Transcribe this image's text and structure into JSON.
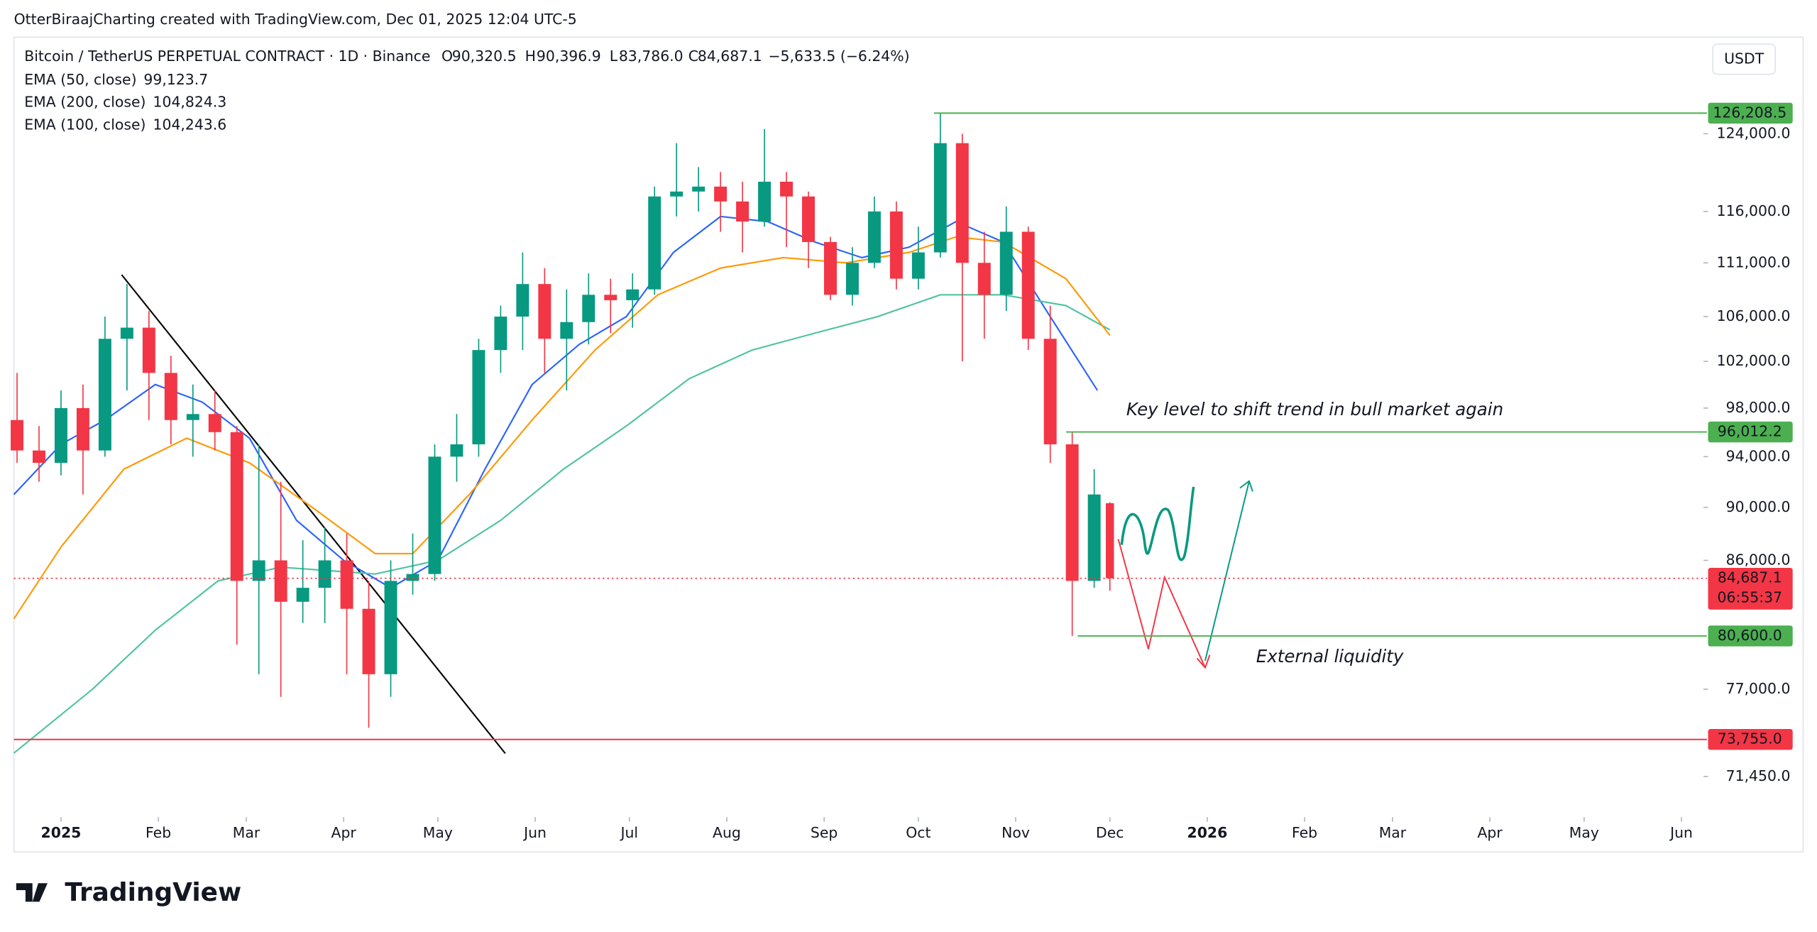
{
  "top_note": "OtterBiraajCharting created with TradingView.com, Dec 01, 2025 12:04 UTC-5",
  "currency": "USDT",
  "brand": "TradingView",
  "header": {
    "symbol": "Bitcoin / TetherUS PERPETUAL CONTRACT · 1D · Binance",
    "o_label": "O",
    "open": "90,320.5",
    "h_label": "H",
    "high": "90,396.9",
    "l_label": "L",
    "low": "83,786.0",
    "c_label": "C",
    "close": "84,687.1",
    "change": "−5,633.5 (−6.24%)"
  },
  "chart_data": {
    "type": "candlestick",
    "log_scale": true,
    "ylim": [
      69000,
      134300
    ],
    "yticks": [
      {
        "value": 71450,
        "label": "71,450.0"
      },
      {
        "value": 77000,
        "label": "77,000.0"
      },
      {
        "value": 86000,
        "label": "86,000.0"
      },
      {
        "value": 90000,
        "label": "90,000.0"
      },
      {
        "value": 94000,
        "label": "94,000.0"
      },
      {
        "value": 98000,
        "label": "98,000.0"
      },
      {
        "value": 102000,
        "label": "102,000.0"
      },
      {
        "value": 106000,
        "label": "106,000.0"
      },
      {
        "value": 111000,
        "label": "111,000.0"
      },
      {
        "value": 116000,
        "label": "116,000.0"
      },
      {
        "value": 124000,
        "label": "124,000.0"
      }
    ],
    "xlim": [
      -15,
      523
    ],
    "xticks": [
      {
        "value": 0,
        "label": "2025"
      },
      {
        "value": 31,
        "label": "Feb"
      },
      {
        "value": 59,
        "label": "Mar"
      },
      {
        "value": 90,
        "label": "Apr"
      },
      {
        "value": 120,
        "label": "May"
      },
      {
        "value": 151,
        "label": "Jun"
      },
      {
        "value": 181,
        "label": "Jul"
      },
      {
        "value": 212,
        "label": "Aug"
      },
      {
        "value": 243,
        "label": "Sep"
      },
      {
        "value": 273,
        "label": "Oct"
      },
      {
        "value": 304,
        "label": "Nov"
      },
      {
        "value": 334,
        "label": "Dec"
      },
      {
        "value": 365,
        "label": "2026"
      },
      {
        "value": 396,
        "label": "Feb"
      },
      {
        "value": 424,
        "label": "Mar"
      },
      {
        "value": 455,
        "label": "Apr"
      },
      {
        "value": 485,
        "label": "May"
      },
      {
        "value": 516,
        "label": "Jun"
      }
    ],
    "up_color": "#089981",
    "down_color": "#f23645",
    "candles": {
      "x": [
        -14,
        -7,
        0,
        7,
        14,
        21,
        28,
        35,
        42,
        49,
        56,
        63,
        70,
        77,
        84,
        91,
        98,
        105,
        112,
        119,
        126,
        133,
        140,
        147,
        154,
        161,
        168,
        175,
        182,
        189,
        196,
        203,
        210,
        217,
        224,
        231,
        238,
        245,
        252,
        259,
        266,
        273,
        280,
        287,
        294,
        301,
        308,
        315,
        322,
        329,
        334
      ],
      "open": [
        97000,
        94500,
        93500,
        98000,
        94500,
        104000,
        105000,
        101000,
        97000,
        97500,
        96000,
        84500,
        86000,
        83000,
        84000,
        86000,
        82500,
        78000,
        84500,
        85000,
        94000,
        95000,
        103000,
        106000,
        109000,
        104000,
        105500,
        108000,
        107500,
        108500,
        117500,
        118000,
        118500,
        117000,
        115000,
        119000,
        117500,
        113000,
        108000,
        111000,
        116000,
        109500,
        112000,
        123000,
        111000,
        108000,
        114000,
        104000,
        95000,
        84500,
        90320.5
      ],
      "high": [
        101000,
        96500,
        99500,
        100000,
        106000,
        109000,
        106500,
        102500,
        100000,
        99500,
        96500,
        95000,
        92000,
        87500,
        88500,
        88000,
        84500,
        86000,
        88000,
        95000,
        97500,
        104000,
        107000,
        112000,
        110500,
        108500,
        110000,
        109500,
        110000,
        118500,
        123000,
        120500,
        120000,
        119000,
        124500,
        120000,
        118000,
        113500,
        112500,
        117500,
        117000,
        114500,
        126200,
        124000,
        114000,
        116500,
        114500,
        107000,
        96000,
        93000,
        90396.9
      ],
      "low": [
        93500,
        92000,
        92500,
        91000,
        94000,
        99500,
        97000,
        95000,
        94000,
        94500,
        80000,
        78000,
        76500,
        81500,
        81500,
        78000,
        74500,
        76500,
        83500,
        84500,
        92000,
        94000,
        101000,
        103000,
        101000,
        99500,
        103500,
        104500,
        105000,
        108000,
        115500,
        116000,
        114000,
        112000,
        114500,
        112500,
        110500,
        107500,
        107000,
        110500,
        108500,
        108500,
        111500,
        102000,
        104000,
        106500,
        103000,
        93500,
        80600,
        84000,
        83786.0
      ],
      "close": [
        94500,
        93500,
        98000,
        94500,
        104000,
        105000,
        101000,
        97000,
        97500,
        96000,
        84500,
        86000,
        83000,
        84000,
        86000,
        82500,
        78000,
        84500,
        85000,
        94000,
        95000,
        103000,
        106000,
        109000,
        104000,
        105500,
        108000,
        107500,
        108500,
        117500,
        118000,
        118500,
        117000,
        115000,
        119000,
        117500,
        113000,
        108000,
        111000,
        116000,
        109500,
        112000,
        123000,
        111000,
        108000,
        114000,
        104000,
        95000,
        84500,
        91000,
        84687.1
      ]
    },
    "series": [
      {
        "name": "EMA (50, close)",
        "value_label": "99,123.7",
        "color": "#2962ff",
        "x": [
          -15,
          0,
          14,
          30,
          45,
          60,
          75,
          90,
          105,
          120,
          135,
          150,
          165,
          180,
          195,
          210,
          225,
          240,
          255,
          270,
          285,
          300,
          315,
          330
        ],
        "values": [
          91000,
          95000,
          97000,
          100000,
          98500,
          95500,
          89000,
          86000,
          84000,
          86000,
          93000,
          100000,
          103500,
          106000,
          112000,
          115500,
          115000,
          113000,
          111500,
          112500,
          115000,
          113000,
          106000,
          99500
        ]
      },
      {
        "name": "EMA (200, close)",
        "value_label": "104,824.3",
        "color": "#4fc3a1",
        "x": [
          -15,
          10,
          30,
          50,
          70,
          100,
          120,
          140,
          160,
          180,
          200,
          220,
          240,
          260,
          280,
          300,
          320,
          334
        ],
        "values": [
          72900,
          77000,
          81000,
          84500,
          85500,
          85000,
          86000,
          89000,
          93000,
          96500,
          100500,
          103000,
          104500,
          106000,
          108000,
          108000,
          107000,
          104800
        ]
      },
      {
        "name": "EMA (100, close)",
        "value_label": "104,243.6",
        "color": "#ff9800",
        "x": [
          -15,
          0,
          20,
          40,
          60,
          80,
          100,
          112,
          130,
          150,
          170,
          190,
          210,
          230,
          250,
          270,
          285,
          300,
          320,
          334
        ],
        "values": [
          81800,
          87000,
          93000,
          95500,
          93500,
          90000,
          86500,
          86500,
          91000,
          97000,
          103000,
          108000,
          110500,
          111500,
          111000,
          112000,
          113500,
          113000,
          109500,
          104300
        ]
      }
    ],
    "levels": [
      {
        "value": 126208.5,
        "label": "126,208.5",
        "color": "#4caf50"
      },
      {
        "value": 96012.2,
        "label": "96,012.2",
        "color": "#4caf50"
      },
      {
        "value": 80600,
        "label": "80,600.0",
        "color": "#4caf50"
      },
      {
        "value": 73755,
        "label": "73,755.0",
        "color": "#f23645"
      }
    ],
    "last_price": {
      "value": 84687.1,
      "label": "84,687.1",
      "countdown": "06:55:37",
      "color": "#f23645"
    },
    "annotations": [
      "Key level to shift trend in bull market again",
      "External liquidity"
    ]
  }
}
